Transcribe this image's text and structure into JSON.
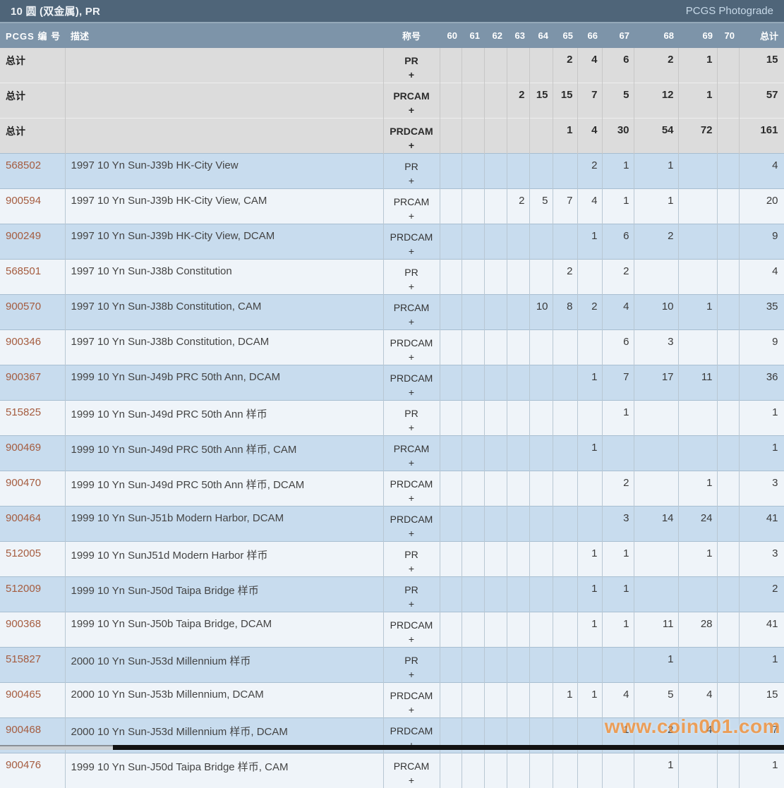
{
  "header": {
    "title": "10 圆 (双金属), PR",
    "photograde_link": "PCGS Photograde"
  },
  "columns": {
    "pcgs": "PCGS 编 号",
    "description": "描述",
    "designation": "称号",
    "grades": [
      "60",
      "61",
      "62",
      "63",
      "64",
      "65",
      "66",
      "67",
      "68",
      "69",
      "70"
    ],
    "total": "总计"
  },
  "summary_label": "总计",
  "plus": "+",
  "summary_rows": [
    {
      "designation": "PR",
      "grades": {
        "65": "2",
        "66": "4",
        "67": "6",
        "68": "2",
        "69": "1"
      },
      "total": "15"
    },
    {
      "designation": "PRCAM",
      "grades": {
        "63": "2",
        "64": "15",
        "65": "15",
        "66": "7",
        "67": "5",
        "68": "12",
        "69": "1"
      },
      "total": "57"
    },
    {
      "designation": "PRDCAM",
      "grades": {
        "65": "1",
        "66": "4",
        "67": "30",
        "68": "54",
        "69": "72"
      },
      "total": "161"
    }
  ],
  "coin_rows": [
    {
      "pcgs_no": "568502",
      "description": "1997 10 Yn Sun-J39b HK-City View",
      "designation": "PR",
      "grades": {
        "66": "2",
        "67": "1",
        "68": "1"
      },
      "total": "4"
    },
    {
      "pcgs_no": "900594",
      "description": "1997 10 Yn Sun-J39b HK-City View, CAM",
      "designation": "PRCAM",
      "grades": {
        "63": "2",
        "64": "5",
        "65": "7",
        "66": "4",
        "67": "1",
        "68": "1"
      },
      "total": "20"
    },
    {
      "pcgs_no": "900249",
      "description": "1997 10 Yn Sun-J39b HK-City View, DCAM",
      "designation": "PRDCAM",
      "grades": {
        "66": "1",
        "67": "6",
        "68": "2"
      },
      "total": "9"
    },
    {
      "pcgs_no": "568501",
      "description": "1997 10 Yn Sun-J38b Constitution",
      "designation": "PR",
      "grades": {
        "65": "2",
        "67": "2"
      },
      "total": "4"
    },
    {
      "pcgs_no": "900570",
      "description": "1997 10 Yn Sun-J38b Constitution, CAM",
      "designation": "PRCAM",
      "grades": {
        "64": "10",
        "65": "8",
        "66": "2",
        "67": "4",
        "68": "10",
        "69": "1"
      },
      "total": "35"
    },
    {
      "pcgs_no": "900346",
      "description": "1997 10 Yn Sun-J38b Constitution, DCAM",
      "designation": "PRDCAM",
      "grades": {
        "67": "6",
        "68": "3"
      },
      "total": "9"
    },
    {
      "pcgs_no": "900367",
      "description": "1999 10 Yn Sun-J49b PRC 50th Ann, DCAM",
      "designation": "PRDCAM",
      "grades": {
        "66": "1",
        "67": "7",
        "68": "17",
        "69": "11"
      },
      "total": "36"
    },
    {
      "pcgs_no": "515825",
      "description": "1999 10 Yn Sun-J49d PRC 50th Ann 样币",
      "designation": "PR",
      "grades": {
        "67": "1"
      },
      "total": "1"
    },
    {
      "pcgs_no": "900469",
      "description": "1999 10 Yn Sun-J49d PRC 50th Ann 样币, CAM",
      "designation": "PRCAM",
      "grades": {
        "66": "1"
      },
      "total": "1"
    },
    {
      "pcgs_no": "900470",
      "description": "1999 10 Yn Sun-J49d PRC 50th Ann 样币, DCAM",
      "designation": "PRDCAM",
      "grades": {
        "67": "2",
        "69": "1"
      },
      "total": "3"
    },
    {
      "pcgs_no": "900464",
      "description": "1999 10 Yn Sun-J51b Modern Harbor, DCAM",
      "designation": "PRDCAM",
      "grades": {
        "67": "3",
        "68": "14",
        "69": "24"
      },
      "total": "41"
    },
    {
      "pcgs_no": "512005",
      "description": "1999 10 Yn SunJ51d Modern Harbor 样币",
      "designation": "PR",
      "grades": {
        "66": "1",
        "67": "1",
        "69": "1"
      },
      "total": "3"
    },
    {
      "pcgs_no": "512009",
      "description": "1999 10 Yn Sun-J50d Taipa Bridge 样币",
      "designation": "PR",
      "grades": {
        "66": "1",
        "67": "1"
      },
      "total": "2"
    },
    {
      "pcgs_no": "900368",
      "description": "1999 10 Yn Sun-J50b Taipa Bridge, DCAM",
      "designation": "PRDCAM",
      "grades": {
        "66": "1",
        "67": "1",
        "68": "11",
        "69": "28"
      },
      "total": "41"
    },
    {
      "pcgs_no": "515827",
      "description": "2000 10 Yn Sun-J53d Millennium 样币",
      "designation": "PR",
      "grades": {
        "68": "1"
      },
      "total": "1"
    },
    {
      "pcgs_no": "900465",
      "description": "2000 10 Yn Sun-J53b Millennium, DCAM",
      "designation": "PRDCAM",
      "grades": {
        "65": "1",
        "66": "1",
        "67": "4",
        "68": "5",
        "69": "4"
      },
      "total": "15"
    },
    {
      "pcgs_no": "900468",
      "description": "2000 10 Yn Sun-J53d Millennium 样币, DCAM",
      "designation": "PRDCAM",
      "grades": {
        "67": "1",
        "68": "2",
        "69": "4"
      },
      "total": "7"
    },
    {
      "pcgs_no": "900476",
      "description": "1999 10 Yn Sun-J50d Taipa Bridge 样币, CAM",
      "designation": "PRCAM",
      "grades": {
        "68": "1"
      },
      "total": "1"
    }
  ],
  "watermark": "www.coin001.com",
  "column_widths": {
    "pcgs": 92,
    "description": 451,
    "designation": 80,
    "grades": [
      31,
      32,
      32,
      32,
      33,
      35,
      35,
      45,
      63,
      55,
      31
    ],
    "total": 64
  },
  "colors": {
    "title_bar": "#4f6579",
    "header_row": "#7d94a9",
    "row_blue": "#c8dcee",
    "row_light": "#eff4f9",
    "row_gray": "#dcdcdc",
    "pcgs_link": "#a55c3f",
    "watermark": "#f68d2e"
  }
}
